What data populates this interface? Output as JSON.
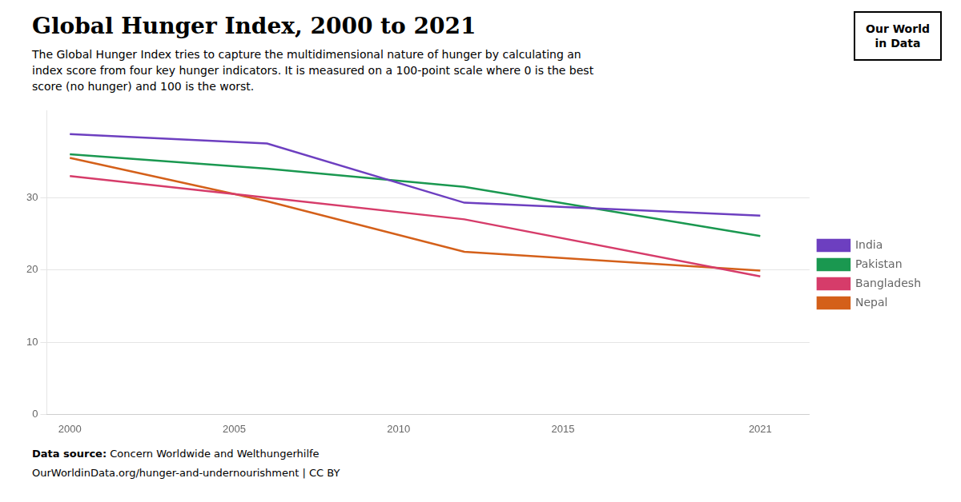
{
  "chart_data": {
    "type": "line",
    "title": "Global Hunger Index, 2000 to 2021",
    "subtitle": "The Global Hunger Index tries to capture the multidimensional nature of hunger by calculating an\nindex score from four key hunger indicators. It is measured on a 100-point scale where 0 is the best\nscore (no hunger) and 100 is the worst.",
    "source_label": "Data source:",
    "source": "Concern Worldwide and Welthungerhilfe",
    "url": "OurWorldinData.org/hunger-and-undernourishment | CC BY",
    "logo": [
      "Our World",
      "in Data"
    ],
    "x": [
      2000,
      2006,
      2012,
      2021
    ],
    "series": [
      {
        "name": "India",
        "color": "#6d3fc0",
        "values": [
          38.8,
          37.5,
          29.3,
          27.5
        ]
      },
      {
        "name": "Pakistan",
        "color": "#1a9850",
        "values": [
          36.0,
          34.0,
          31.5,
          24.7
        ]
      },
      {
        "name": "Bangladesh",
        "color": "#d63c6a",
        "values": [
          33.0,
          30.0,
          27.0,
          19.1
        ]
      },
      {
        "name": "Nepal",
        "color": "#d4601a",
        "values": [
          35.5,
          29.5,
          22.5,
          19.9
        ]
      }
    ],
    "xlim": [
      1999.3,
      2022.5
    ],
    "xticks": [
      2000,
      2005,
      2010,
      2015,
      2021
    ],
    "ylim": [
      0,
      42
    ],
    "yticks": [
      0,
      10,
      20,
      30
    ],
    "grid": true,
    "legend": "right"
  }
}
